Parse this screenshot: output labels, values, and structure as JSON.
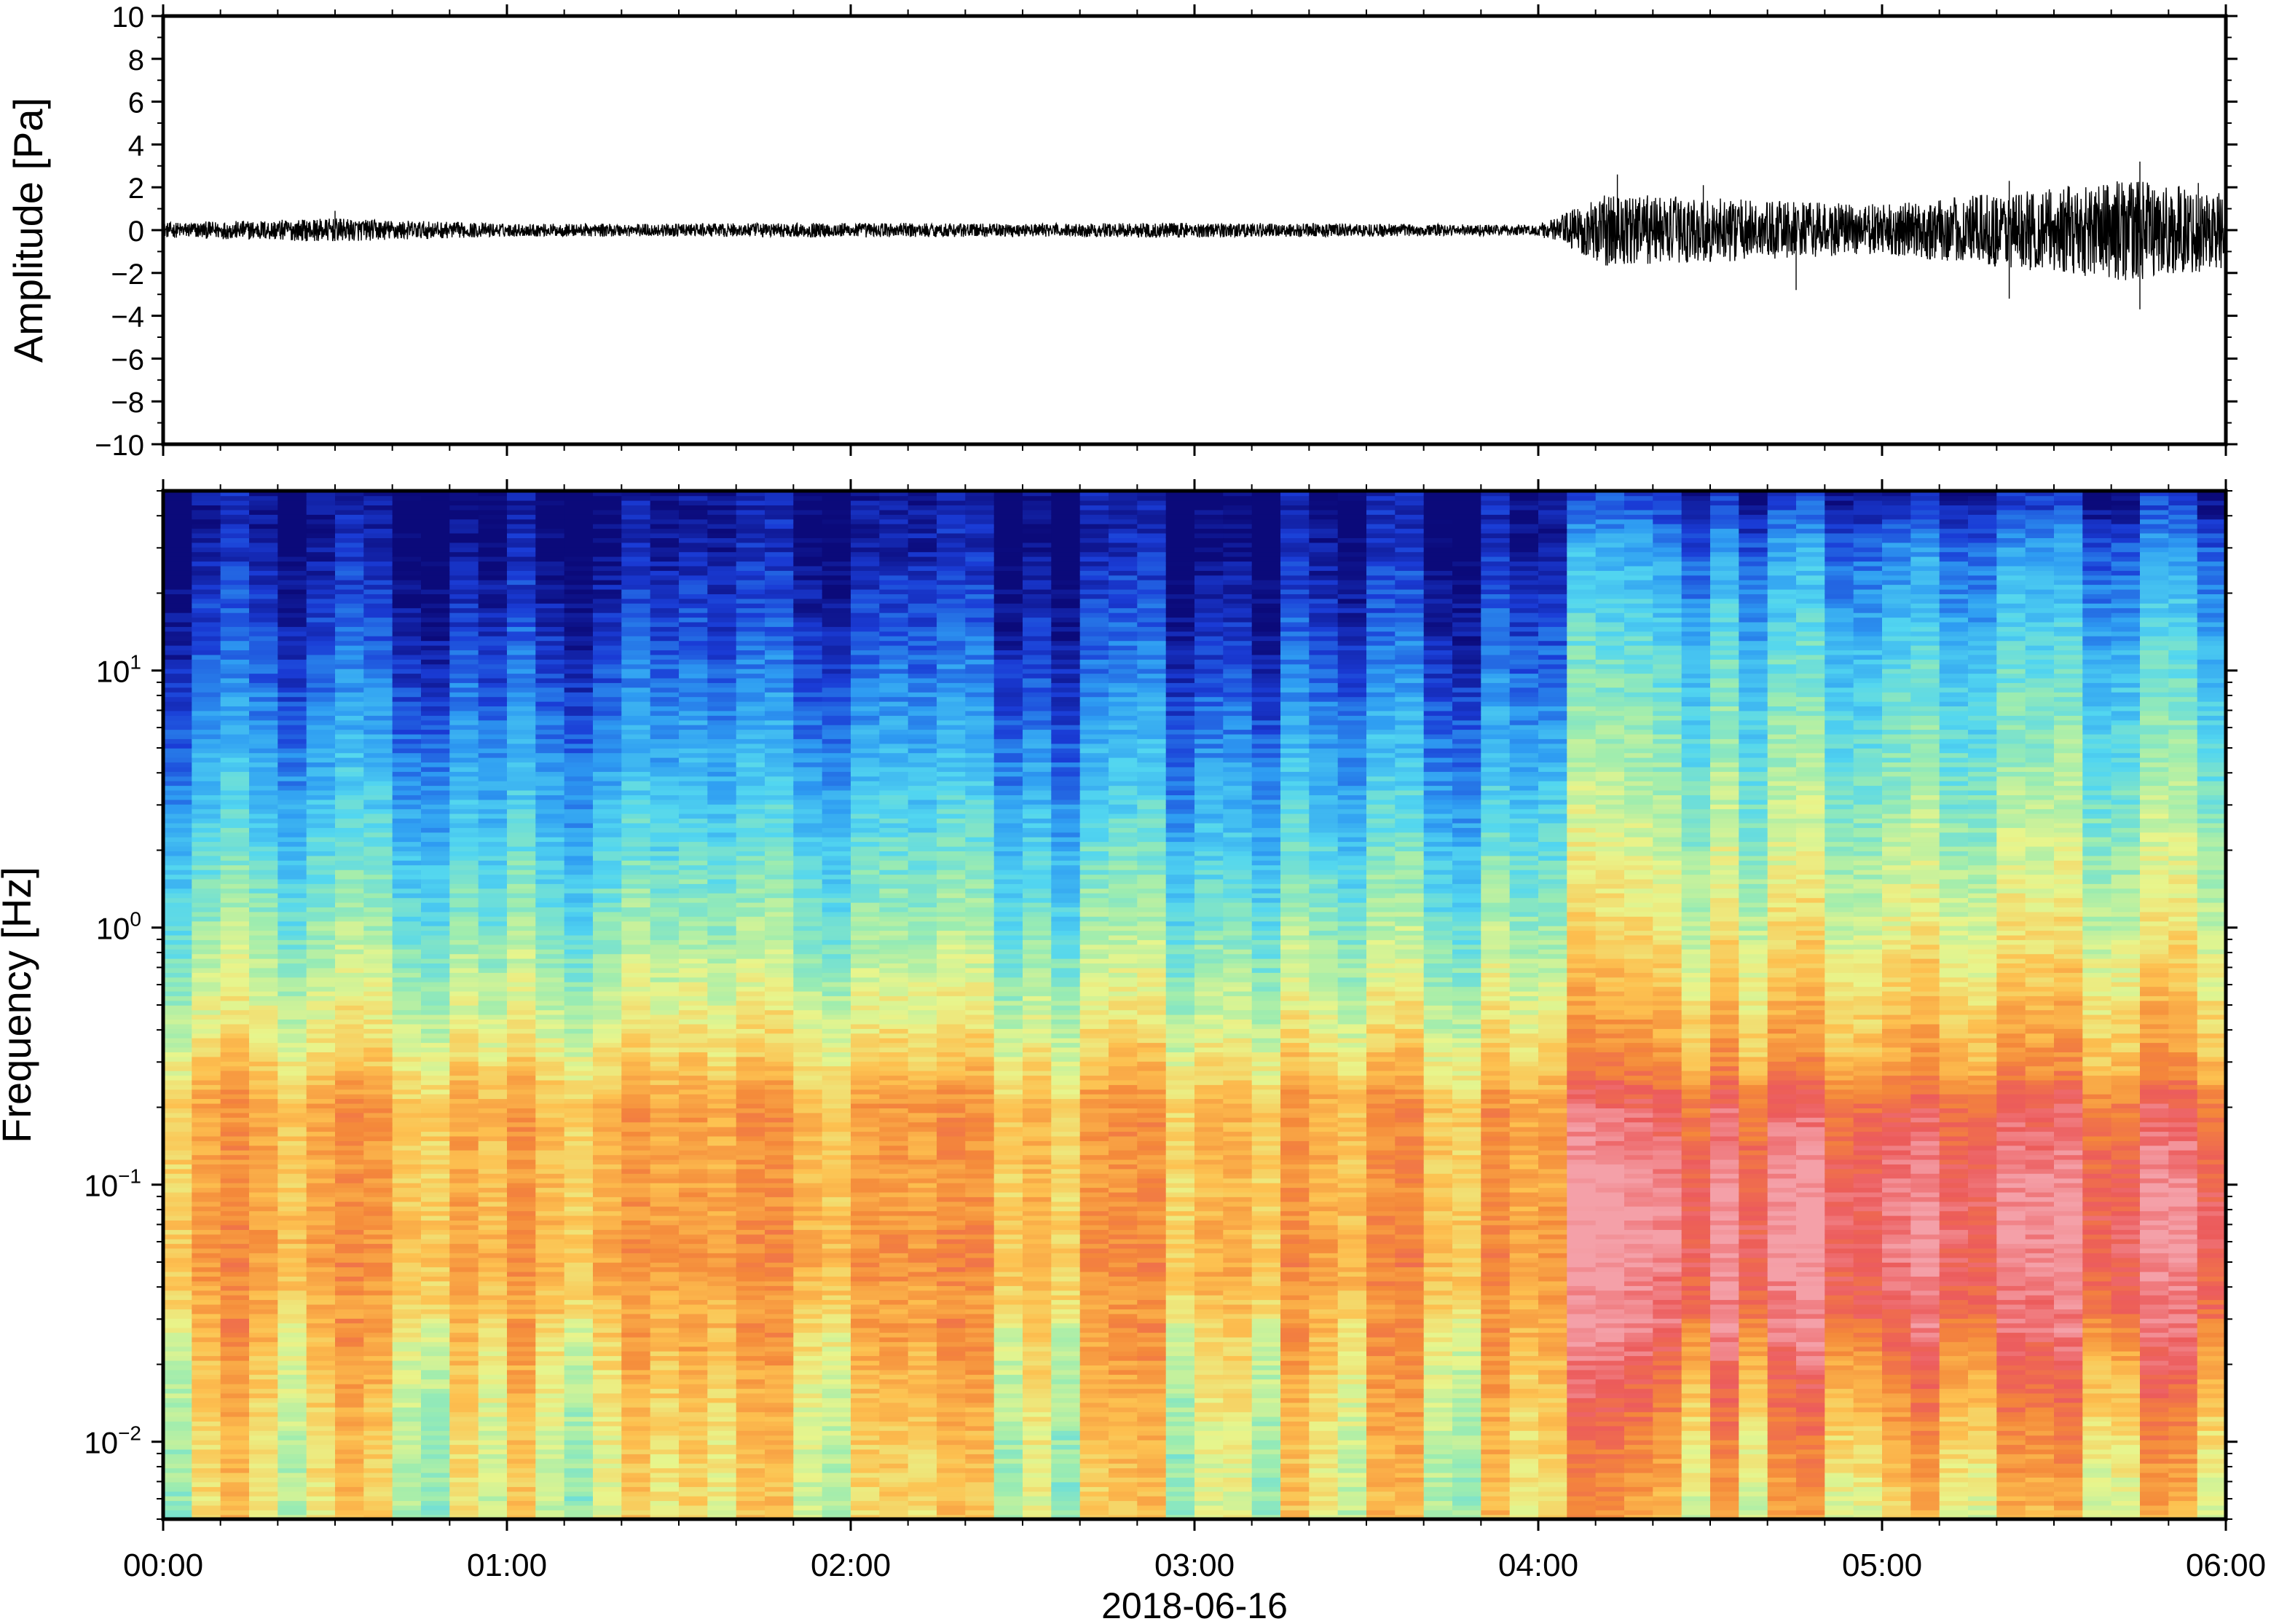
{
  "chart_data": [
    {
      "type": "line",
      "panel": "waveform",
      "ylabel": "Amplitude [Pa]",
      "ylim": [
        -10,
        10
      ],
      "yticks": [
        10,
        8,
        6,
        4,
        2,
        0,
        -2,
        -4,
        -6,
        -8,
        -10
      ],
      "ytick_labels": [
        "10",
        "8",
        "6",
        "4",
        "2",
        "0",
        "−2",
        "−4",
        "−6",
        "−8",
        "−10"
      ],
      "xlim_hours": [
        0,
        6
      ],
      "grid": false,
      "envelope": {
        "time_hours": [
          0.0,
          0.5,
          1.0,
          1.5,
          2.0,
          2.5,
          3.0,
          3.5,
          4.0,
          4.05,
          4.2,
          4.5,
          4.8,
          5.0,
          5.2,
          5.5,
          5.7,
          5.9,
          6.0
        ],
        "amplitude_pa": [
          0.35,
          0.55,
          0.3,
          0.3,
          0.35,
          0.3,
          0.35,
          0.3,
          0.25,
          0.6,
          1.7,
          1.5,
          1.3,
          1.2,
          1.5,
          2.0,
          2.4,
          2.0,
          1.8
        ]
      },
      "peaks": [
        {
          "time_hours": 0.5,
          "value_pa": 0.9
        },
        {
          "time_hours": 4.23,
          "value_pa": 2.6
        },
        {
          "time_hours": 4.48,
          "value_pa": 2.1
        },
        {
          "time_hours": 4.75,
          "value_pa": -2.8
        },
        {
          "time_hours": 5.37,
          "value_pa": 2.3
        },
        {
          "time_hours": 5.37,
          "value_pa": -3.2
        },
        {
          "time_hours": 5.75,
          "value_pa": 3.2
        },
        {
          "time_hours": 5.75,
          "value_pa": -3.7
        },
        {
          "time_hours": 5.92,
          "value_pa": 2.2
        }
      ]
    },
    {
      "type": "heatmap",
      "panel": "spectrogram",
      "ylabel": "Frequency [Hz]",
      "yscale": "log",
      "ylim_hz": [
        0.005,
        50
      ],
      "yticks_hz": [
        0.01,
        0.1,
        1,
        10
      ],
      "ytick_base": "10",
      "ytick_exponents": [
        "−2",
        "−1",
        "0",
        "1"
      ],
      "colormap": "jet",
      "colormap_stops": [
        "#0b0a7a",
        "#1a3cd6",
        "#2e9cf2",
        "#52d6f0",
        "#9cecb0",
        "#e8f58c",
        "#fdc150",
        "#f4883a",
        "#ec5b5b",
        "#f4a0a8"
      ],
      "xlabel": "2018-06-16",
      "xticks_hours": [
        0,
        1,
        2,
        3,
        4,
        5,
        6
      ],
      "xtick_labels": [
        "00:00",
        "01:00",
        "02:00",
        "03:00",
        "04:00",
        "05:00",
        "06:00"
      ],
      "regime_change_hours": 4.05,
      "power_profile_before": {
        "freq_hz": [
          0.005,
          0.01,
          0.02,
          0.05,
          0.1,
          0.2,
          0.4,
          1,
          3,
          10,
          30,
          50
        ],
        "level": [
          0.55,
          0.57,
          0.62,
          0.72,
          0.69,
          0.7,
          0.55,
          0.42,
          0.28,
          0.14,
          0.02,
          0.0
        ]
      },
      "power_profile_after": {
        "freq_hz": [
          0.005,
          0.01,
          0.02,
          0.03,
          0.06,
          0.1,
          0.2,
          0.3,
          1,
          3,
          10,
          30,
          50
        ],
        "level": [
          0.62,
          0.7,
          0.8,
          0.89,
          0.95,
          0.94,
          0.86,
          0.72,
          0.56,
          0.45,
          0.34,
          0.2,
          0.05
        ]
      }
    }
  ]
}
